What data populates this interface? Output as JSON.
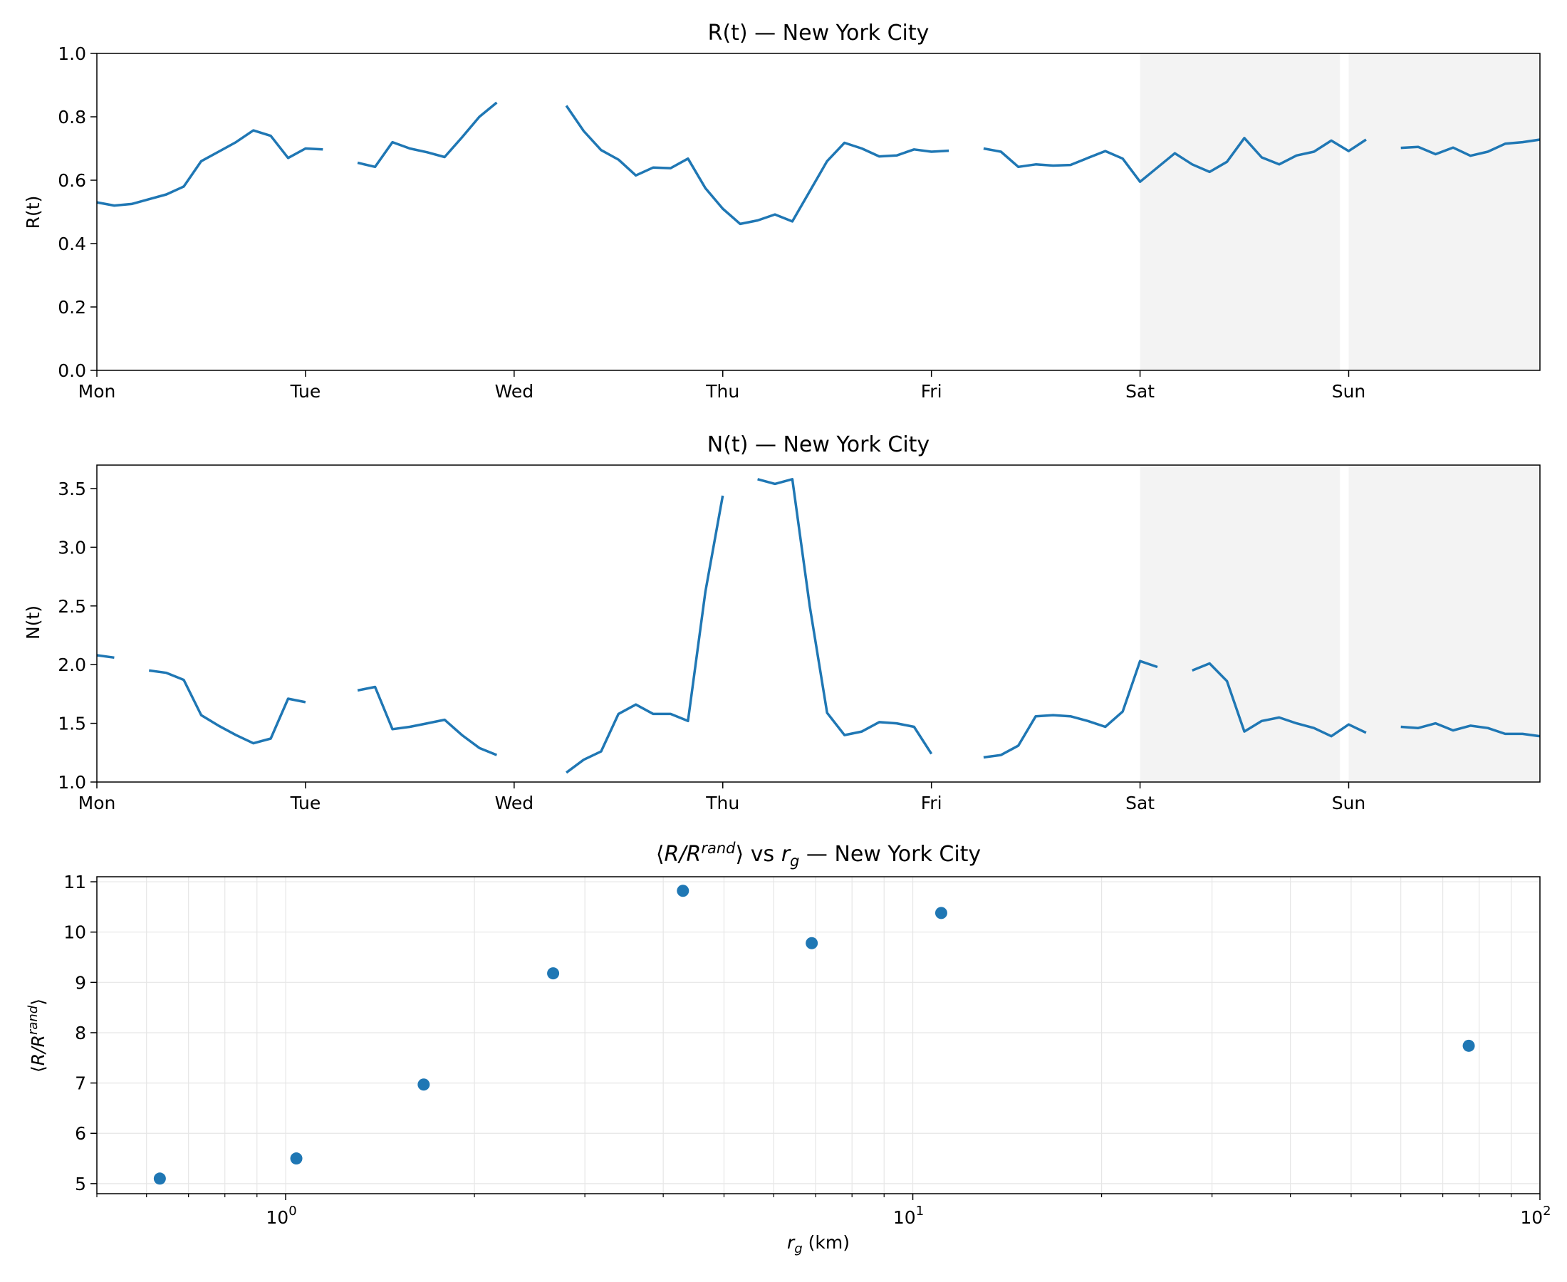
{
  "chart_data": [
    {
      "type": "line",
      "title": "R(t) — New York City",
      "xlabel": "",
      "ylabel": "R(t)",
      "x_unit": "hours since Monday 00:00",
      "xlim": [
        0,
        166
      ],
      "ylim": [
        0,
        1
      ],
      "yticks": [
        0.0,
        0.2,
        0.4,
        0.6,
        0.8,
        1.0
      ],
      "ytick_labels": [
        "0.0",
        "0.2",
        "0.4",
        "0.6",
        "0.8",
        "1.0"
      ],
      "xtick_positions": [
        0,
        24,
        48,
        72,
        96,
        120,
        144
      ],
      "xtick_labels": [
        "Mon",
        "Tue",
        "Wed",
        "Thu",
        "Fri",
        "Sat",
        "Sun"
      ],
      "weekend_shading": [
        [
          120,
          143
        ],
        [
          144,
          166
        ]
      ],
      "grid": false,
      "color": "#1f77b4",
      "x": [
        0,
        2,
        4,
        6,
        8,
        10,
        12,
        14,
        16,
        18,
        20,
        22,
        24,
        26,
        30,
        32,
        34,
        36,
        38,
        40,
        42,
        44,
        46,
        54,
        56,
        58,
        60,
        62,
        64,
        66,
        68,
        70,
        72,
        74,
        76,
        78,
        80,
        82,
        84,
        86,
        88,
        90,
        92,
        94,
        96,
        98,
        102,
        104,
        106,
        108,
        110,
        112,
        114,
        116,
        118,
        120,
        122,
        124,
        126,
        128,
        130,
        132,
        134,
        136,
        138,
        140,
        142,
        144,
        146,
        150,
        152,
        154,
        156,
        158,
        160,
        162,
        164,
        166
      ],
      "values": [
        0.53,
        0.52,
        0.525,
        0.54,
        0.555,
        0.58,
        0.66,
        0.69,
        0.72,
        0.757,
        0.74,
        0.67,
        0.7,
        0.697,
        0.655,
        0.642,
        0.72,
        0.7,
        0.688,
        0.673,
        0.735,
        0.8,
        0.845,
        0.835,
        0.755,
        0.695,
        0.665,
        0.615,
        0.64,
        0.638,
        0.668,
        0.575,
        0.51,
        0.462,
        0.473,
        0.492,
        0.47,
        0.565,
        0.66,
        0.718,
        0.7,
        0.675,
        0.678,
        0.697,
        0.69,
        0.693,
        0.7,
        0.69,
        0.642,
        0.65,
        0.646,
        0.648,
        0.67,
        0.692,
        0.668,
        0.595,
        0.64,
        0.685,
        0.65,
        0.626,
        0.658,
        0.733,
        0.672,
        0.65,
        0.678,
        0.69,
        0.725,
        0.692,
        0.728,
        0.702,
        0.705,
        0.682,
        0.703,
        0.677,
        0.69,
        0.715,
        0.72,
        0.728
      ],
      "gap_after_x": [
        26,
        46,
        98,
        146
      ]
    },
    {
      "type": "line",
      "title": "N(t) — New York City",
      "xlabel": "",
      "ylabel": "N(t)",
      "x_unit": "hours since Monday 00:00",
      "xlim": [
        0,
        166
      ],
      "ylim": [
        1.0,
        3.7
      ],
      "yticks": [
        1.0,
        1.5,
        2.0,
        2.5,
        3.0,
        3.5
      ],
      "ytick_labels": [
        "1.0",
        "1.5",
        "2.0",
        "2.5",
        "3.0",
        "3.5"
      ],
      "xtick_positions": [
        0,
        24,
        48,
        72,
        96,
        120,
        144
      ],
      "xtick_labels": [
        "Mon",
        "Tue",
        "Wed",
        "Thu",
        "Fri",
        "Sat",
        "Sun"
      ],
      "weekend_shading": [
        [
          120,
          143
        ],
        [
          144,
          166
        ]
      ],
      "grid": false,
      "color": "#1f77b4",
      "x": [
        0,
        2,
        6,
        8,
        10,
        12,
        14,
        16,
        18,
        20,
        22,
        24,
        30,
        32,
        34,
        36,
        38,
        40,
        42,
        44,
        46,
        54,
        56,
        58,
        60,
        62,
        64,
        66,
        68,
        70,
        72,
        76,
        78,
        80,
        82,
        84,
        86,
        88,
        90,
        92,
        94,
        96,
        102,
        104,
        106,
        108,
        110,
        112,
        114,
        116,
        118,
        120,
        122,
        126,
        128,
        130,
        132,
        134,
        136,
        138,
        140,
        142,
        144,
        146,
        150,
        152,
        154,
        156,
        158,
        160,
        162,
        164,
        166
      ],
      "values": [
        2.08,
        2.06,
        1.95,
        1.93,
        1.87,
        1.57,
        1.48,
        1.4,
        1.33,
        1.37,
        1.71,
        1.68,
        1.78,
        1.81,
        1.45,
        1.47,
        1.5,
        1.53,
        1.4,
        1.29,
        1.23,
        1.08,
        1.19,
        1.26,
        1.58,
        1.66,
        1.58,
        1.58,
        1.52,
        2.62,
        3.44,
        3.58,
        3.54,
        3.58,
        2.5,
        1.59,
        1.4,
        1.43,
        1.51,
        1.5,
        1.47,
        1.24,
        1.21,
        1.23,
        1.31,
        1.56,
        1.57,
        1.56,
        1.52,
        1.47,
        1.6,
        2.03,
        1.98,
        1.95,
        2.01,
        1.86,
        1.43,
        1.52,
        1.55,
        1.5,
        1.46,
        1.39,
        1.49,
        1.42,
        1.47,
        1.46,
        1.5,
        1.44,
        1.48,
        1.46,
        1.41,
        1.41,
        1.39
      ],
      "gap_after_x": [
        2,
        24,
        46,
        72,
        96,
        122,
        146
      ]
    },
    {
      "type": "scatter",
      "title_parts": [
        "⟨",
        "R",
        "/",
        "R",
        "rand",
        "⟩ vs ",
        "r",
        "g",
        " — New York City"
      ],
      "xlabel_parts": [
        "r",
        "g",
        " (km)"
      ],
      "ylabel_parts": [
        "⟨",
        "R",
        "/",
        "R",
        "rand",
        "⟩"
      ],
      "x_scale": "log",
      "xlim": [
        0.5,
        100
      ],
      "ylim": [
        4.8,
        11.1
      ],
      "yticks": [
        5,
        6,
        7,
        8,
        9,
        10,
        11
      ],
      "ytick_labels": [
        "5",
        "6",
        "7",
        "8",
        "9",
        "10",
        "11"
      ],
      "xtick_major": [
        1,
        10,
        100
      ],
      "xtick_major_labels": [
        [
          "10",
          "0"
        ],
        [
          "10",
          "1"
        ],
        [
          "10",
          "2"
        ]
      ],
      "grid": true,
      "color": "#1f77b4",
      "x": [
        0.63,
        1.04,
        1.66,
        2.67,
        4.3,
        6.9,
        11.1,
        77
      ],
      "values": [
        5.1,
        5.5,
        6.97,
        9.18,
        10.82,
        9.78,
        10.38,
        7.74
      ]
    }
  ]
}
